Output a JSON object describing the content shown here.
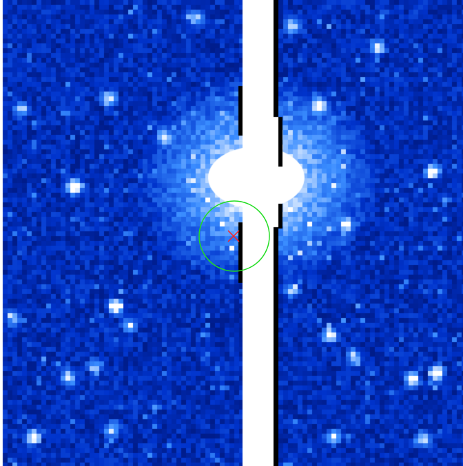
{
  "image": {
    "kind": "astronomical-detector-frame",
    "colormap": [
      "#00003a",
      "#0033cc",
      "#3a8dff",
      "#ffffff"
    ],
    "background_color": "#ffffff",
    "gap_color": "#ffffff",
    "edge_color": "#000000"
  },
  "overlays": {
    "aperture_color": "#22dd22",
    "marker_color": "#ff2222"
  }
}
